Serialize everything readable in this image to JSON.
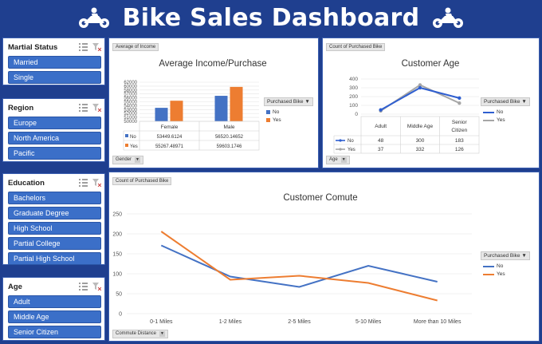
{
  "header": {
    "title": "Bike Sales Dashboard"
  },
  "slicers": {
    "marital": {
      "title": "Martial Status",
      "items": [
        "Married",
        "Single"
      ]
    },
    "region": {
      "title": "Region",
      "items": [
        "Europe",
        "North America",
        "Pacific"
      ]
    },
    "education": {
      "title": "Education",
      "items": [
        "Bachelors",
        "Graduate Degree",
        "High School",
        "Partial College",
        "Partial High School"
      ]
    },
    "age": {
      "title": "Age",
      "items": [
        "Adult",
        "Middle Age",
        "Senior Citizen"
      ]
    }
  },
  "colors": {
    "no": "#4472c4",
    "yes": "#ed7d31",
    "age_no": "#2f5fd0",
    "age_yes": "#a6a6a6"
  },
  "income": {
    "field_tag": "Average of Income",
    "axis_tag": "Gender",
    "legend_title": "Purchased Bike",
    "legend": [
      "No",
      "Yes"
    ],
    "table": [
      [
        "No",
        "53449.6124",
        "56520.14652"
      ],
      [
        "Yes",
        "55267.48971",
        "59603.1746"
      ]
    ]
  },
  "age_chart": {
    "field_tag": "Count of Purchased Bike",
    "axis_tag": "Age",
    "legend_title": "Purchased Bike",
    "legend": [
      "No",
      "Yes"
    ],
    "table": [
      [
        "No",
        "48",
        "300",
        "183"
      ],
      [
        "Yes",
        "37",
        "332",
        "126"
      ]
    ]
  },
  "commute": {
    "field_tag": "Count of Purchased Bike",
    "axis_tag": "Commute Distance",
    "legend_title": "Purchased Bike",
    "legend": [
      "No",
      "Yes"
    ]
  },
  "chart_data": [
    {
      "type": "bar",
      "title": "Average Income/Purchase",
      "categories": [
        "Female",
        "Male"
      ],
      "series": [
        {
          "name": "No",
          "values": [
            53449.6124,
            56520.14652
          ]
        },
        {
          "name": "Yes",
          "values": [
            55267.48971,
            59603.1746
          ]
        }
      ],
      "ylim": [
        50000,
        62000
      ],
      "yticks": [
        "50000",
        "51000",
        "52000",
        "53000",
        "54000",
        "55000",
        "56000",
        "57000",
        "58000",
        "60000",
        "62000"
      ],
      "grid": true,
      "legend": "right"
    },
    {
      "type": "line",
      "title": "Customer Age",
      "categories": [
        "Adult",
        "Middle Age",
        "Senior Citizen"
      ],
      "series": [
        {
          "name": "No",
          "values": [
            48,
            300,
            183
          ]
        },
        {
          "name": "Yes",
          "values": [
            37,
            332,
            126
          ]
        }
      ],
      "ylim": [
        0,
        400
      ],
      "yticks": [
        "0",
        "100",
        "200",
        "300",
        "400"
      ],
      "grid": true,
      "legend": "right"
    },
    {
      "type": "line",
      "title": "Customer Comute",
      "categories": [
        "0-1 Miles",
        "1-2 Miles",
        "2-5 Miles",
        "5-10 Miles",
        "More than 10 Miles"
      ],
      "series": [
        {
          "name": "No",
          "values": [
            171,
            93,
            67,
            120,
            80
          ]
        },
        {
          "name": "Yes",
          "values": [
            206,
            85,
            95,
            77,
            33
          ]
        }
      ],
      "ylim": [
        0,
        250
      ],
      "yticks": [
        "0",
        "50",
        "100",
        "150",
        "200",
        "250"
      ],
      "grid": true,
      "legend": "right"
    }
  ]
}
